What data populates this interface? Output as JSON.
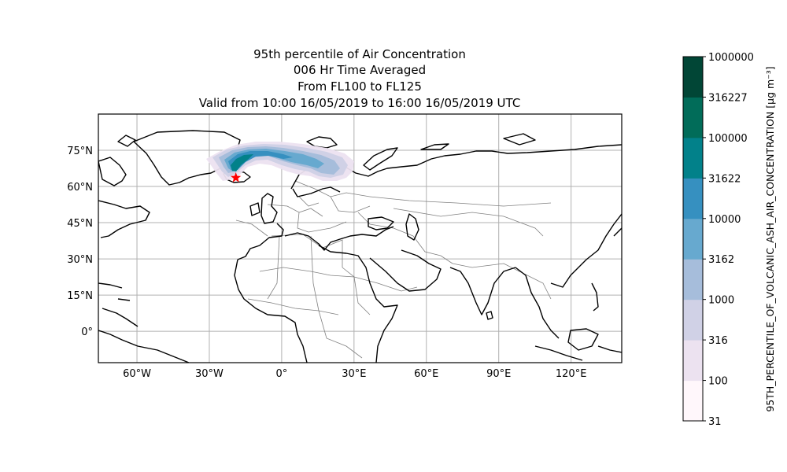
{
  "title_lines": [
    "95th percentile of Air Concentration",
    "006 Hr Time Averaged",
    "From FL100 to FL125",
    "Valid from 10:00 16/05/2019 to 16:00 16/05/2019 UTC"
  ],
  "map": {
    "lon_ticks": [
      {
        "value": -60,
        "label": "60°W"
      },
      {
        "value": -30,
        "label": "30°W"
      },
      {
        "value": 0,
        "label": "0°"
      },
      {
        "value": 30,
        "label": "30°E"
      },
      {
        "value": 60,
        "label": "60°E"
      },
      {
        "value": 90,
        "label": "90°E"
      },
      {
        "value": 120,
        "label": "120°E"
      }
    ],
    "lat_ticks": [
      {
        "value": 75,
        "label": "75°N"
      },
      {
        "value": 60,
        "label": "60°N"
      },
      {
        "value": 45,
        "label": "45°N"
      },
      {
        "value": 30,
        "label": "30°N"
      },
      {
        "value": 15,
        "label": "15°N"
      },
      {
        "value": 0,
        "label": "0°"
      }
    ],
    "lon_range": [
      -76,
      141
    ],
    "lat_range": [
      -13,
      90
    ],
    "gridlines": true,
    "source_marker": {
      "lon": -19,
      "lat": 63.6,
      "color": "#ff0000",
      "shape": "star"
    }
  },
  "colorbar": {
    "label": "95TH_PERCENTILE_OF_VOLCANIC_ASH_AIR_CONCENTRATION [μg m⁻³]",
    "ticks": [
      "31",
      "100",
      "316",
      "1000",
      "3162",
      "10000",
      "31622",
      "100000",
      "316227",
      "1000000"
    ],
    "colors": [
      "#fff7fb",
      "#ece2f0",
      "#d0d1e6",
      "#a6bddb",
      "#67a9cf",
      "#3690c0",
      "#02818a",
      "#016c59",
      "#014636"
    ]
  }
}
